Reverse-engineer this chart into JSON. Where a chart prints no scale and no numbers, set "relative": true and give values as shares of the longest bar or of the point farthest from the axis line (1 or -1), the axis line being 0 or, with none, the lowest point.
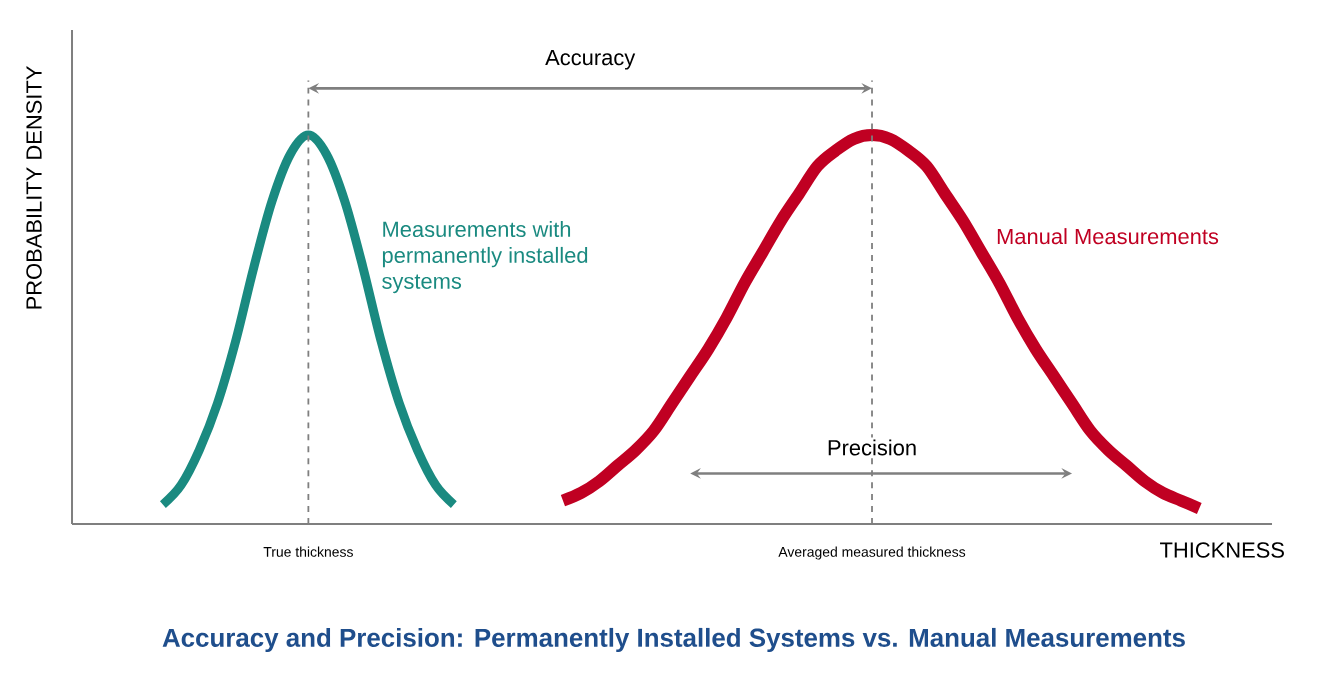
{
  "chart_data": {
    "type": "line",
    "title": "Accuracy and Precision: Permanently Installed Systems vs. Manual Measurements",
    "xlabel": "THICKNESS",
    "ylabel": "PROBABILITY DENSITY",
    "relative": true,
    "categories": [
      null,
      null,
      null,
      null,
      null,
      null,
      null,
      null,
      null,
      null,
      null,
      null,
      null,
      null,
      null,
      null,
      null,
      null,
      null,
      null,
      null,
      null,
      null,
      null,
      null,
      null,
      null,
      null,
      null,
      null,
      null,
      null,
      null,
      null,
      null,
      null,
      null,
      null,
      null,
      null,
      null,
      null,
      null,
      null,
      null,
      null,
      null,
      null,
      null,
      null,
      null,
      null,
      null,
      null,
      null,
      null,
      null,
      null,
      null,
      null,
      null,
      null,
      null,
      null,
      null,
      null,
      null
    ],
    "series": [
      {
        "name": "Measurements with permanently installed systems",
        "color": "#1a8a80",
        "values": [
          null,
          null,
          null,
          null,
          null,
          0.05,
          0.1,
          0.19,
          0.31,
          0.47,
          0.66,
          0.83,
          0.95,
          1,
          0.95,
          0.83,
          0.66,
          0.47,
          0.31,
          0.19,
          0.1,
          0.05,
          null,
          null,
          null,
          null,
          null,
          null,
          null,
          null,
          null,
          null,
          null,
          null,
          null,
          null,
          null,
          null,
          null,
          null,
          null,
          null,
          null,
          null,
          null,
          null,
          null,
          null,
          null,
          null,
          null,
          null,
          null,
          null,
          null,
          null,
          null,
          null,
          null,
          null,
          null,
          null,
          null,
          null,
          null,
          null,
          null
        ]
      },
      {
        "name": "Manual Measurements",
        "color": "#c00022",
        "values": [
          null,
          null,
          null,
          null,
          null,
          null,
          null,
          null,
          null,
          null,
          null,
          null,
          null,
          null,
          null,
          null,
          null,
          null,
          null,
          null,
          null,
          null,
          null,
          null,
          null,
          null,
          null,
          0.06,
          0.08,
          0.11,
          0.15,
          0.19,
          0.24,
          0.31,
          0.38,
          0.45,
          0.53,
          0.62,
          0.7,
          0.78,
          0.85,
          0.92,
          0.96,
          0.99,
          1,
          0.99,
          0.96,
          0.92,
          0.85,
          0.78,
          0.7,
          0.62,
          0.53,
          0.45,
          0.38,
          0.31,
          0.24,
          0.19,
          0.15,
          0.11,
          0.08,
          0.06,
          0.04,
          null,
          null,
          null,
          null
        ]
      }
    ],
    "annotations": [
      "Accuracy",
      "Precision",
      "True thickness",
      "Averaged measured thickness"
    ]
  }
}
